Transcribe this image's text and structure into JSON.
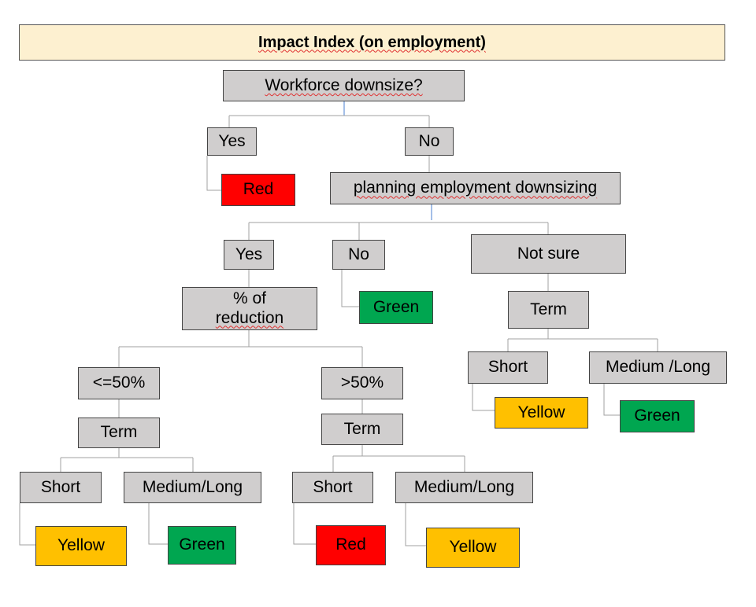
{
  "title": "Impact Index (on employment)",
  "nodes": {
    "workforce_downsize": "Workforce downsize?",
    "yes_1": "Yes",
    "no_1": "No",
    "red_1": "Red",
    "planning": "planning employment downsizing",
    "yes_2": "Yes",
    "no_2": "No",
    "not_sure": "Not sure",
    "green_1": "Green",
    "pct_reduction_line1": "% of",
    "pct_reduction_line2": "reduction",
    "term_not_sure": "Term",
    "short_not_sure": "Short",
    "medium_long_not_sure": "Medium /Long",
    "yellow_not_sure": "Yellow",
    "green_not_sure": "Green",
    "le50": "<=50%",
    "gt50": ">50%",
    "term_le50": "Term",
    "term_gt50": "Term",
    "short_le50": "Short",
    "medium_long_le50": "Medium/Long",
    "short_gt50": "Short",
    "medium_long_gt50": "Medium/Long",
    "yellow_le50": "Yellow",
    "green_le50": "Green",
    "red_gt50": "Red",
    "yellow_gt50": "Yellow"
  },
  "colors": {
    "title_bg": "#fdf0d0",
    "node_gray": "#d0cece",
    "red": "#ff0000",
    "green": "#00a650",
    "yellow": "#ffc000",
    "connector": "#a0a0a0",
    "connector_accent": "#4a7fd0"
  }
}
